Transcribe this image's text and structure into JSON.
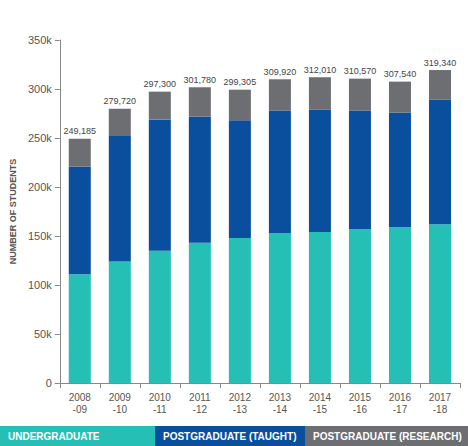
{
  "chart_data": {
    "type": "bar",
    "stacked": true,
    "grid": false,
    "legend": "bottom",
    "ylabel": "NUMBER OF STUDENTS",
    "categories": [
      "2008\n-09",
      "2009\n-10",
      "2010\n-11",
      "2011\n-12",
      "2012\n-13",
      "2013\n-14",
      "2014\n-15",
      "2015\n-16",
      "2016\n-17",
      "2017\n-18"
    ],
    "series": [
      {
        "name": "UNDERGRADUATE",
        "color": "#26bfb5",
        "values": [
          111000,
          124000,
          135000,
          143000,
          148000,
          153000,
          154000,
          157000,
          159000,
          162000
        ]
      },
      {
        "name": "POSTGRADUATE (TAUGHT)",
        "color": "#0a4f9e",
        "values": [
          110000,
          128000,
          134000,
          129000,
          120000,
          125000,
          125000,
          121000,
          117000,
          127000
        ]
      },
      {
        "name": "POSTGRADUATE (RESEARCH)",
        "color": "#6d6e71",
        "values": [
          28185,
          27720,
          28300,
          29780,
          31305,
          31920,
          33010,
          32570,
          31540,
          30340
        ]
      }
    ],
    "totals": [
      249185,
      279720,
      297300,
      301780,
      299305,
      309920,
      312010,
      310570,
      307540,
      319340
    ],
    "total_labels": [
      "249,185",
      "279,720",
      "297,300",
      "301,780",
      "299,305",
      "309,920",
      "312,010",
      "310,570",
      "307,540",
      "319,340"
    ],
    "ylim": [
      0,
      350000
    ],
    "yticks": [
      0,
      {
        "value": 50000,
        "label": "50k"
      },
      {
        "value": 100000,
        "label": "100k"
      },
      {
        "value": 150000,
        "label": "150k"
      },
      {
        "value": 200000,
        "label": "200k"
      },
      {
        "value": 250000,
        "label": "250k"
      },
      {
        "value": 300000,
        "label": "300k"
      },
      {
        "value": 350000,
        "label": "350k"
      }
    ]
  }
}
